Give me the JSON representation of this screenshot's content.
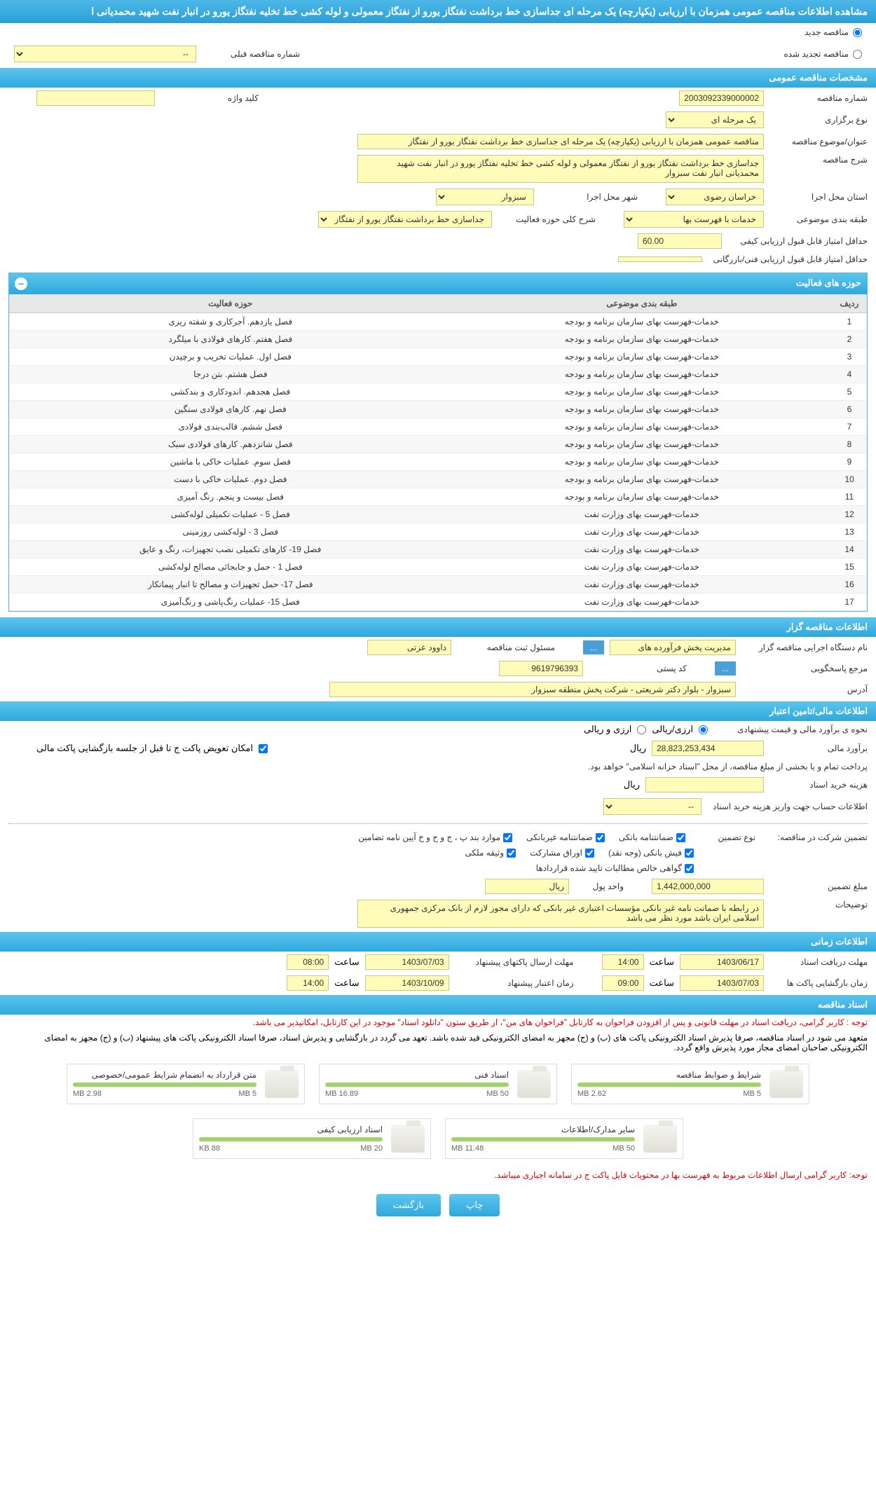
{
  "header": {
    "title": "مشاهده اطلاعات مناقصه عمومی همزمان با ارزیابی (یکپارچه) یک مرحله ای جداسازی خط برداشت نفتگاز یورو از نفتگاز معمولی و لوله کشی خط تخلیه نفتگاز یورو در انبار نفت شهید محمدیانی ا"
  },
  "top_radios": {
    "new_label": "مناقصه جدید",
    "renewed_label": "مناقصه تجدید شده",
    "prev_select_label": "شماره مناقصه قبلی",
    "prev_select_value": "--"
  },
  "sections": {
    "general": "مشخصات مناقصه عمومی",
    "activities": "حوزه های فعالیت",
    "organizer": "اطلاعات مناقصه گزار",
    "financial": "اطلاعات مالی/تامین اعتبار",
    "timing": "اطلاعات زمانی",
    "documents": "اسناد مناقصه"
  },
  "general": {
    "tender_no_label": "شماره مناقصه",
    "tender_no": "2003092339000002",
    "keyword_label": "کلید واژه",
    "keyword": "",
    "holding_type_label": "نوع برگزاری",
    "holding_type": "یک مرحله ای",
    "subject_label": "عنوان/موضوع مناقصه",
    "subject": "مناقصه عمومی همزمان با ارزیابی (یکپارچه) یک مرحله ای جداسازی خط برداشت نفتگاز یورو از نفتگاز",
    "desc_label": "شرح مناقصه",
    "desc": "جداسازی خط برداشت نفتگاز یورو از نفتگاز معمولی و لوله کشی خط تخلیه نفتگاز یورو در انبار نفت شهید محمدیانی انبار نفت سبزوار",
    "province_label": "استان محل اجرا",
    "province": "خراسان رضوی",
    "city_label": "شهر محل اجرا",
    "city": "سبزوار",
    "category_label": "طبقه بندی موضوعی",
    "category": "خدمات با فهرست بها",
    "activity_area_label": "شرح کلی حوزه فعالیت",
    "activity_area": "جداسازی خط برداشت نفتگاز یورو از نفتگاز",
    "min_quality_label": "حداقل امتیاز قابل قبول ارزیابی کیفی",
    "min_quality": "60.00",
    "min_tech_label": "حداقل امتیاز قابل قبول ارزیابی فنی/بازرگانی",
    "min_tech": ""
  },
  "activity_table": {
    "headers": {
      "row": "ردیف",
      "category": "طبقه بندی موضوعی",
      "area": "حوزه فعالیت"
    },
    "rows": [
      {
        "n": "1",
        "cat": "خدمات-فهرست بهای سازمان برنامه و بودجه",
        "area": "فصل یازدهم. آجرکاری و شفته ریزی"
      },
      {
        "n": "2",
        "cat": "خدمات-فهرست بهای سازمان برنامه و بودجه",
        "area": "فصل هفتم. کارهای فولادی با میلگرد"
      },
      {
        "n": "3",
        "cat": "خدمات-فهرست بهای سازمان برنامه و بودجه",
        "area": "فصل اول. عملیات تخریب و برچیدن"
      },
      {
        "n": "4",
        "cat": "خدمات-فهرست بهای سازمان برنامه و بودجه",
        "area": "فصل هشتم. بتن درجا"
      },
      {
        "n": "5",
        "cat": "خدمات-فهرست بهای سازمان برنامه و بودجه",
        "area": "فصل هجدهم. اندودکاری و بندکشی"
      },
      {
        "n": "6",
        "cat": "خدمات-فهرست بهای سازمان برنامه و بودجه",
        "area": "فصل نهم. کارهای فولادی سنگین"
      },
      {
        "n": "7",
        "cat": "خدمات-فهرست بهای سازمان برنامه و بودجه",
        "area": "فصل ششم. قالب‌بندی فولادی"
      },
      {
        "n": "8",
        "cat": "خدمات-فهرست بهای سازمان برنامه و بودجه",
        "area": "فصل شانزدهم. کارهای فولادی سبک"
      },
      {
        "n": "9",
        "cat": "خدمات-فهرست بهای سازمان برنامه و بودجه",
        "area": "فصل سوم. عملیات خاکی با ماشین"
      },
      {
        "n": "10",
        "cat": "خدمات-فهرست بهای سازمان برنامه و بودجه",
        "area": "فصل دوم. عملیات خاکی با دست"
      },
      {
        "n": "11",
        "cat": "خدمات-فهرست بهای سازمان برنامه و بودجه",
        "area": "فصل بیست و پنجم. رنگ آمیزی"
      },
      {
        "n": "12",
        "cat": "خدمات-فهرست بهای وزارت نفت",
        "area": "فصل 5 - عملیات تکمیلی لوله‌کشی"
      },
      {
        "n": "13",
        "cat": "خدمات-فهرست بهای وزارت نفت",
        "area": "فصل 3 - لوله‌کشی روزمینی"
      },
      {
        "n": "14",
        "cat": "خدمات-فهرست بهای وزارت نفت",
        "area": "فصل 19- کارهای تکمیلی نصب تجهیزات، رنگ و عایق"
      },
      {
        "n": "15",
        "cat": "خدمات-فهرست بهای وزارت نفت",
        "area": "فصل 1 - حمل و جابجائی مصالح لوله‌کشی"
      },
      {
        "n": "16",
        "cat": "خدمات-فهرست بهای وزارت نفت",
        "area": "فصل 17- حمل تجهیزات و مصالح تا انبار پیمانکار"
      },
      {
        "n": "17",
        "cat": "خدمات-فهرست بهای وزارت نفت",
        "area": "فصل 15- عملیات رنگ‌پاشی و رنگ‌آمیزی"
      }
    ]
  },
  "organizer": {
    "exec_name_label": "نام دستگاه اجرایی مناقصه گزار",
    "exec_name": "مدیریت پخش فرآورده های",
    "register_label": "مسئول ثبت مناقصه",
    "register": "داوود عزتی",
    "btn_more": "...",
    "response_label": "مرجع پاسخگویی",
    "btn_response": "...",
    "postal_label": "کد پستی",
    "postal": "9619796393",
    "address_label": "آدرس",
    "address": "سبزوار - بلوار دکتر شریعتی - شرکت پخش منطقه سبزوار"
  },
  "financial": {
    "estimate_method_label": "نحوه ی برآورد مالی و قیمت پیشنهادی",
    "radio_rial": "ارزی/ریالی",
    "radio_foreign": "ارزی و ریالی",
    "estimate_label": "برآورد مالی",
    "estimate": "28,823,253,434",
    "currency": "ریال",
    "payment_note": "پرداخت تمام و یا بخشی از مبلغ مناقصه، از محل \"اسناد خزانه اسلامی\" خواهد بود.",
    "replace_checkbox": "امکان تعویض پاکت ج تا قبل از جلسه بازگشایی پاکت مالی",
    "doc_cost_label": "هزینه خرید اسناد",
    "doc_cost_currency": "ریال",
    "account_label": "اطلاعات حساب جهت واریز هزینه خرید اسناد",
    "account_value": "--",
    "guarantee_title": "تضمین شرکت در مناقصه:",
    "guarantee_type_label": "نوع تضمین",
    "cb_bank": "ضمانتنامه بانکی",
    "cb_nonbank": "ضمانتنامه غیربانکی",
    "cb_clauses": "موارد بند پ ، ج و ح و خ آیین نامه تضامین",
    "cb_cash": "فیش بانکی (وجه نقد)",
    "cb_bonds": "اوراق مشارکت",
    "cb_property": "وثیقه ملکی",
    "cb_contracts": "گواهی خالص مطالبات تایید شده قراردادها",
    "guarantee_amount_label": "مبلغ تضمین",
    "guarantee_amount": "1,442,000,000",
    "unit_label": "واحد پول",
    "unit_value": "ریال",
    "notes_label": "توضیحات",
    "notes": "در رابطه با ضمانت نامه غیر بانکی مؤسسات اعتباری غیر بانکی که دارای مجوز لازم از بانک مرکزی جمهوری اسلامی ایران باشد مورد نظر می باشد"
  },
  "timing": {
    "receive_label": "مهلت دریافت اسناد",
    "receive_date": "1403/06/17",
    "receive_time_label": "ساعت",
    "receive_time": "14:00",
    "submit_label": "مهلت ارسال پاکتهای پیشنهاد",
    "submit_date": "1403/07/03",
    "submit_time_label": "ساعت",
    "submit_time": "08:00",
    "open_label": "زمان بازگشایی پاکت ها",
    "open_date": "1403/07/03",
    "open_time_label": "ساعت",
    "open_time": "09:00",
    "validity_label": "زمان اعتبار پیشنهاد",
    "validity_date": "1403/10/09",
    "validity_time_label": "ساعت",
    "validity_time": "14:00"
  },
  "doc_notes": {
    "note1": "توجه : کاربر گرامی، دریافت اسناد در مهلت قانونی و پس از افزودن فراخوان به کارتابل \"فراخوان های من\"، از طریق ستون \"دانلود اسناد\" موجود در این کارتابل، امکانپذیر می باشد.",
    "note2": "متعهد می شود در اسناد مناقصه، صرفا پذیرش اسناد الکترونیکی پاکت های (ب) و (ج) مجهز به امضای الکترونیکی قید شده باشد. تعهد می گردد در بازگشایی و پذیرش اسناد، صرفا اسناد الکترونیکی پاکت های پیشنهاد (ب) و (ج) مجهز به امضای الکترونیکی صاحبان امضای مجاز مورد پذیرش واقع گردد.",
    "note3": "توجه: کاربر گرامی ارسال اطلاعات مربوط به فهرست بها در محتویات فایل پاکت ج در سامانه اجباری میباشد."
  },
  "documents": [
    {
      "title": "شرایط و ضوابط مناقصه",
      "size": "2.62 MB",
      "limit": "5 MB"
    },
    {
      "title": "اسناد فنی",
      "size": "16.89 MB",
      "limit": "50 MB"
    },
    {
      "title": "متن قرارداد به انضمام شرایط عمومی/خصوصی",
      "size": "2.98 MB",
      "limit": "5 MB"
    },
    {
      "title": "سایر مدارک/اطلاعات",
      "size": "11.48 MB",
      "limit": "50 MB"
    },
    {
      "title": "اسناد ارزیابی کیفی",
      "size": "88 KB",
      "limit": "20 MB"
    }
  ],
  "buttons": {
    "print": "چاپ",
    "back": "بازگشت"
  }
}
